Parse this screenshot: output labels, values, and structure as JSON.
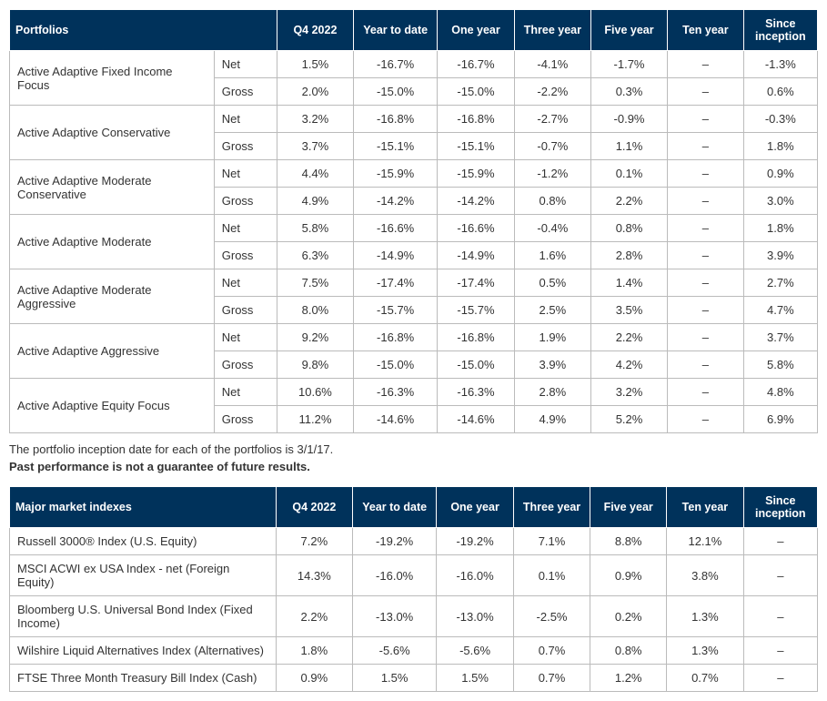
{
  "colors": {
    "header_bg": "#00325b",
    "header_fg": "#ffffff",
    "border": "#bbbbbb",
    "text": "#333333"
  },
  "portfolios_table": {
    "headers": [
      "Portfolios",
      "Q4 2022",
      "Year to date",
      "One year",
      "Three year",
      "Five year",
      "Ten year",
      "Since inception"
    ],
    "rows": [
      {
        "name": "Active Adaptive Fixed Income Focus",
        "net": [
          "1.5%",
          "-16.7%",
          "-16.7%",
          "-4.1%",
          "-1.7%",
          "–",
          "-1.3%"
        ],
        "gross": [
          "2.0%",
          "-15.0%",
          "-15.0%",
          "-2.2%",
          "0.3%",
          "–",
          "0.6%"
        ]
      },
      {
        "name": "Active Adaptive Conservative",
        "net": [
          "3.2%",
          "-16.8%",
          "-16.8%",
          "-2.7%",
          "-0.9%",
          "–",
          "-0.3%"
        ],
        "gross": [
          "3.7%",
          "-15.1%",
          "-15.1%",
          "-0.7%",
          "1.1%",
          "–",
          "1.8%"
        ]
      },
      {
        "name": "Active Adaptive Moderate Conservative",
        "net": [
          "4.4%",
          "-15.9%",
          "-15.9%",
          "-1.2%",
          "0.1%",
          "–",
          "0.9%"
        ],
        "gross": [
          "4.9%",
          "-14.2%",
          "-14.2%",
          "0.8%",
          "2.2%",
          "–",
          "3.0%"
        ]
      },
      {
        "name": "Active Adaptive Moderate",
        "net": [
          "5.8%",
          "-16.6%",
          "-16.6%",
          "-0.4%",
          "0.8%",
          "–",
          "1.8%"
        ],
        "gross": [
          "6.3%",
          "-14.9%",
          "-14.9%",
          "1.6%",
          "2.8%",
          "–",
          "3.9%"
        ]
      },
      {
        "name": "Active Adaptive Moderate Aggressive",
        "net": [
          "7.5%",
          "-17.4%",
          "-17.4%",
          "0.5%",
          "1.4%",
          "–",
          "2.7%"
        ],
        "gross": [
          "8.0%",
          "-15.7%",
          "-15.7%",
          "2.5%",
          "3.5%",
          "–",
          "4.7%"
        ]
      },
      {
        "name": "Active Adaptive Aggressive",
        "net": [
          "9.2%",
          "-16.8%",
          "-16.8%",
          "1.9%",
          "2.2%",
          "–",
          "3.7%"
        ],
        "gross": [
          "9.8%",
          "-15.0%",
          "-15.0%",
          "3.9%",
          "4.2%",
          "–",
          "5.8%"
        ]
      },
      {
        "name": "Active Adaptive Equity Focus",
        "net": [
          "10.6%",
          "-16.3%",
          "-16.3%",
          "2.8%",
          "3.2%",
          "–",
          "4.8%"
        ],
        "gross": [
          "11.2%",
          "-14.6%",
          "-14.6%",
          "4.9%",
          "5.2%",
          "–",
          "6.9%"
        ]
      }
    ],
    "type_labels": {
      "net": "Net",
      "gross": "Gross"
    }
  },
  "notes": {
    "line1": "The portfolio inception date for each of the portfolios is 3/1/17.",
    "line2": "Past performance is not a guarantee of future results."
  },
  "indexes_table": {
    "headers": [
      "Major market indexes",
      "Q4 2022",
      "Year to date",
      "One year",
      "Three year",
      "Five year",
      "Ten year",
      "Since inception"
    ],
    "rows": [
      {
        "name": "Russell 3000® Index (U.S. Equity)",
        "values": [
          "7.2%",
          "-19.2%",
          "-19.2%",
          "7.1%",
          "8.8%",
          "12.1%",
          "–"
        ]
      },
      {
        "name": "MSCI ACWI ex USA Index - net (Foreign Equity)",
        "values": [
          "14.3%",
          "-16.0%",
          "-16.0%",
          "0.1%",
          "0.9%",
          "3.8%",
          "–"
        ]
      },
      {
        "name": "Bloomberg U.S. Universal Bond Index (Fixed Income)",
        "values": [
          "2.2%",
          "-13.0%",
          "-13.0%",
          "-2.5%",
          "0.2%",
          "1.3%",
          "–"
        ]
      },
      {
        "name": "Wilshire Liquid Alternatives Index (Alternatives)",
        "values": [
          "1.8%",
          "-5.6%",
          "-5.6%",
          "0.7%",
          "0.8%",
          "1.3%",
          "–"
        ]
      },
      {
        "name": "FTSE Three Month Treasury Bill Index (Cash)",
        "values": [
          "0.9%",
          "1.5%",
          "1.5%",
          "0.7%",
          "1.2%",
          "0.7%",
          "–"
        ]
      }
    ]
  }
}
